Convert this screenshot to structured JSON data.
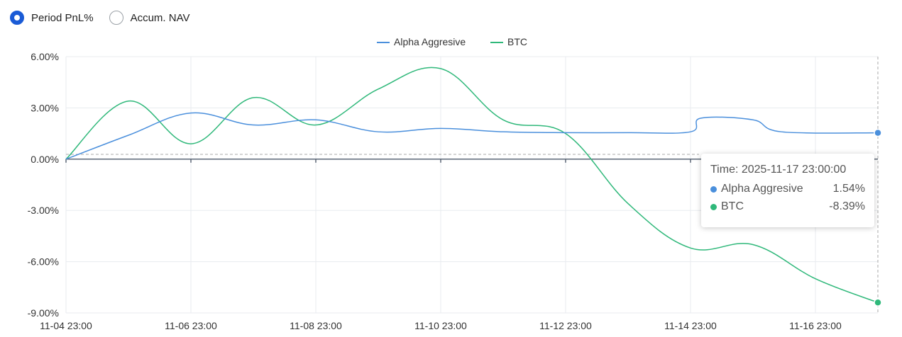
{
  "controls": {
    "mode_options": [
      {
        "label": "Period PnL%",
        "selected": true
      },
      {
        "label": "Accum. NAV",
        "selected": false
      }
    ]
  },
  "colors": {
    "alpha": "#4a8fdc",
    "btc": "#2fb87a",
    "radio_accent": "#1a5bd6",
    "grid": "#e8ebef",
    "axis": "#5a6675",
    "crosshair": "#a9a9a9"
  },
  "tooltip": {
    "time_label": "Time: 2025-11-17 23:00:00",
    "rows": [
      {
        "name": "Alpha Aggresive",
        "value": "1.54%"
      },
      {
        "name": "BTC",
        "value": "-8.39%"
      }
    ]
  },
  "chart_data": {
    "type": "line",
    "x_labels": [
      "11-04 23:00",
      "11-06 23:00",
      "11-08 23:00",
      "11-10 23:00",
      "11-12 23:00",
      "11-14 23:00",
      "11-16 23:00"
    ],
    "x_range": [
      "2025-11-04 23:00",
      "2025-11-17 23:00"
    ],
    "y_ticks": [
      "6.00%",
      "3.00%",
      "0.00%",
      "-3.00%",
      "-6.00%",
      "-9.00%"
    ],
    "ylim": [
      -9,
      6
    ],
    "y_unit": "%",
    "legend_position": "top-center",
    "grid": true,
    "series": [
      {
        "name": "Alpha Aggresive",
        "color": "#4a8fdc",
        "points": [
          [
            "2025-11-04 23:00",
            0.0
          ],
          [
            "2025-11-05 23:00",
            1.4
          ],
          [
            "2025-11-06 23:00",
            2.7
          ],
          [
            "2025-11-07 23:00",
            2.0
          ],
          [
            "2025-11-08 23:00",
            2.3
          ],
          [
            "2025-11-09 23:00",
            1.6
          ],
          [
            "2025-11-10 23:00",
            1.8
          ],
          [
            "2025-11-11 23:00",
            1.6
          ],
          [
            "2025-11-12 23:00",
            1.55
          ],
          [
            "2025-11-13 23:00",
            1.55
          ],
          [
            "2025-11-14 23:00",
            1.6
          ],
          [
            "2025-11-15 03:00",
            2.4
          ],
          [
            "2025-11-15 23:00",
            2.3
          ],
          [
            "2025-11-16 10:00",
            1.6
          ],
          [
            "2025-11-17 23:00",
            1.54
          ]
        ]
      },
      {
        "name": "BTC",
        "color": "#2fb87a",
        "points": [
          [
            "2025-11-04 23:00",
            0.0
          ],
          [
            "2025-11-05 23:00",
            3.4
          ],
          [
            "2025-11-06 23:00",
            0.9
          ],
          [
            "2025-11-07 23:00",
            3.6
          ],
          [
            "2025-11-08 23:00",
            2.0
          ],
          [
            "2025-11-09 23:00",
            4.1
          ],
          [
            "2025-11-10 23:00",
            5.3
          ],
          [
            "2025-11-11 23:00",
            2.3
          ],
          [
            "2025-11-12 23:00",
            1.5
          ],
          [
            "2025-11-13 23:00",
            -2.6
          ],
          [
            "2025-11-14 23:00",
            -5.2
          ],
          [
            "2025-11-15 23:00",
            -5.0
          ],
          [
            "2025-11-16 23:00",
            -7.0
          ],
          [
            "2025-11-17 23:00",
            -8.39
          ]
        ]
      }
    ]
  }
}
